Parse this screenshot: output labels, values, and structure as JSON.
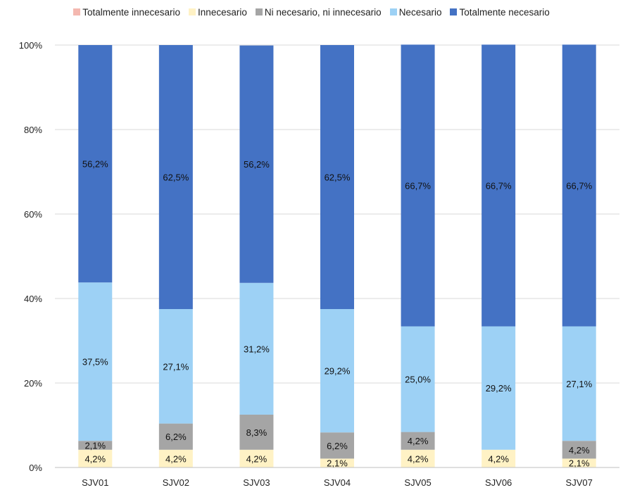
{
  "chart_data": {
    "type": "bar",
    "stacked": true,
    "percent": true,
    "categories": [
      "SJV01",
      "SJV02",
      "SJV03",
      "SJV04",
      "SJV05",
      "SJV06",
      "SJV07"
    ],
    "series": [
      {
        "name": "Totalmente innecesario",
        "color": "#f4b8b0",
        "values": [
          0,
          0,
          0,
          0,
          0,
          0,
          0
        ],
        "labels": [
          "",
          "",
          "",
          "",
          "",
          "",
          ""
        ]
      },
      {
        "name": "Innecesario",
        "color": "#fff2c5",
        "values": [
          4.2,
          4.2,
          4.2,
          2.1,
          4.2,
          4.2,
          2.1
        ],
        "labels": [
          "4,2%",
          "4,2%",
          "4,2%",
          "2,1%",
          "4,2%",
          "4,2%",
          "2,1%"
        ]
      },
      {
        "name": "Ni necesario, ni innecesario",
        "color": "#a5a5a5",
        "values": [
          2.1,
          6.2,
          8.3,
          6.2,
          4.2,
          0,
          4.2
        ],
        "labels": [
          "2,1%",
          "6,2%",
          "8,3%",
          "6,2%",
          "4,2%",
          "",
          "4,2%"
        ]
      },
      {
        "name": "Necesario",
        "color": "#9dd1f5",
        "values": [
          37.5,
          27.1,
          31.2,
          29.2,
          25.0,
          29.2,
          27.1
        ],
        "labels": [
          "37,5%",
          "27,1%",
          "31,2%",
          "29,2%",
          "25,0%",
          "29,2%",
          "27,1%"
        ]
      },
      {
        "name": "Totalmente necesario",
        "color": "#4472c4",
        "values": [
          56.2,
          62.5,
          56.2,
          62.5,
          66.7,
          66.7,
          66.7
        ],
        "labels": [
          "56,2%",
          "62,5%",
          "56,2%",
          "62,5%",
          "66,7%",
          "66,7%",
          "66,7%"
        ]
      }
    ],
    "yticks": [
      "0%",
      "20%",
      "40%",
      "60%",
      "80%",
      "100%"
    ],
    "ylim": [
      0,
      100
    ],
    "grid": true,
    "legend_position": "top"
  }
}
